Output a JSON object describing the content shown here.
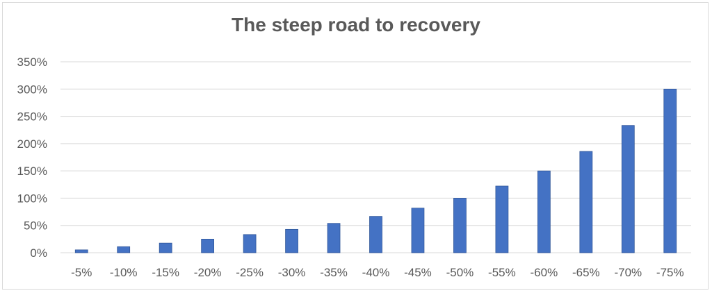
{
  "chart_data": {
    "type": "bar",
    "title": "The steep road to recovery",
    "xlabel": "",
    "ylabel": "",
    "categories": [
      "-5%",
      "-10%",
      "-15%",
      "-20%",
      "-25%",
      "-30%",
      "-35%",
      "-40%",
      "-45%",
      "-50%",
      "-55%",
      "-60%",
      "-65%",
      "-70%",
      "-75%"
    ],
    "values": [
      5.26,
      11.11,
      17.65,
      25,
      33.33,
      42.86,
      53.85,
      66.67,
      81.82,
      100,
      122.22,
      150,
      185.71,
      233.33,
      300
    ],
    "ylim": [
      0,
      350
    ],
    "yticks": [
      0,
      50,
      100,
      150,
      200,
      250,
      300,
      350
    ],
    "ytick_labels": [
      "0%",
      "50%",
      "100%",
      "150%",
      "200%",
      "250%",
      "300%",
      "350%"
    ],
    "grid": true,
    "legend": "none",
    "colors": {
      "bar": "#4472c4",
      "bar_edge": "#2f5597",
      "grid": "#d9d9d9",
      "text": "#595959"
    }
  }
}
